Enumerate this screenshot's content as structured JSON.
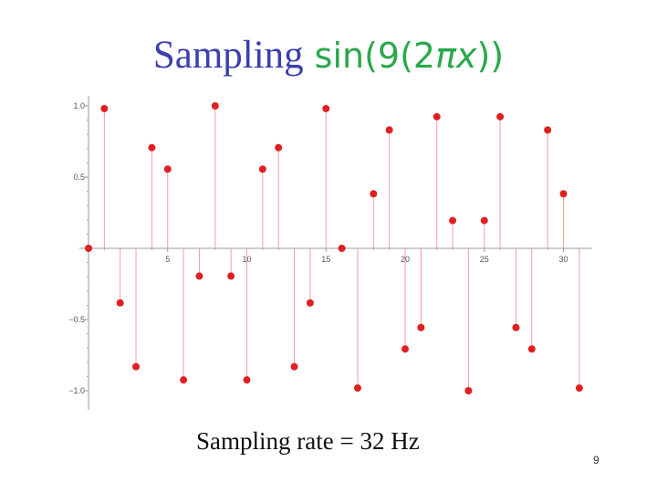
{
  "title": {
    "word": "Sampling",
    "math_prefix": "sin(9(2",
    "pi": "π",
    "x": "x",
    "math_suffix": "))"
  },
  "caption": "Sampling rate = 32 Hz",
  "page_number": "9",
  "colors": {
    "title_word": "#3b3fb0",
    "title_math": "#2aa84a",
    "points": "#e02020",
    "stems": "#f0a0a0",
    "axes": "#999999"
  },
  "chart_data": {
    "type": "scatter",
    "style": "stem",
    "title": "Sampling sin(9(2πx))",
    "xlabel": "",
    "ylabel": "",
    "xlim": [
      0,
      31.5
    ],
    "ylim": [
      -1.07,
      1.07
    ],
    "xticks": [
      5,
      10,
      15,
      20,
      25,
      30
    ],
    "xtick_labels": [
      "5",
      "10",
      "15",
      "20",
      "25",
      "30"
    ],
    "yticks": [
      1.0,
      0.5,
      -0.5,
      -1.0
    ],
    "ytick_labels": [
      "1.0",
      "0.5",
      "−0.5",
      "−1.0"
    ],
    "grid": false,
    "x": [
      0,
      1,
      2,
      3,
      4,
      5,
      6,
      7,
      8,
      9,
      10,
      11,
      12,
      13,
      14,
      15,
      16,
      17,
      18,
      19,
      20,
      21,
      22,
      23,
      24,
      25,
      26,
      27,
      28,
      29,
      30,
      31
    ],
    "y": [
      0,
      0.981,
      -0.383,
      -0.831,
      0.707,
      0.556,
      -0.924,
      -0.195,
      1.0,
      -0.195,
      -0.924,
      0.556,
      0.707,
      -0.831,
      -0.383,
      0.981,
      0,
      -0.981,
      0.383,
      0.831,
      -0.707,
      -0.556,
      0.924,
      0.195,
      -1.0,
      0.195,
      0.924,
      -0.556,
      -0.707,
      0.831,
      0.383,
      -0.981
    ]
  }
}
